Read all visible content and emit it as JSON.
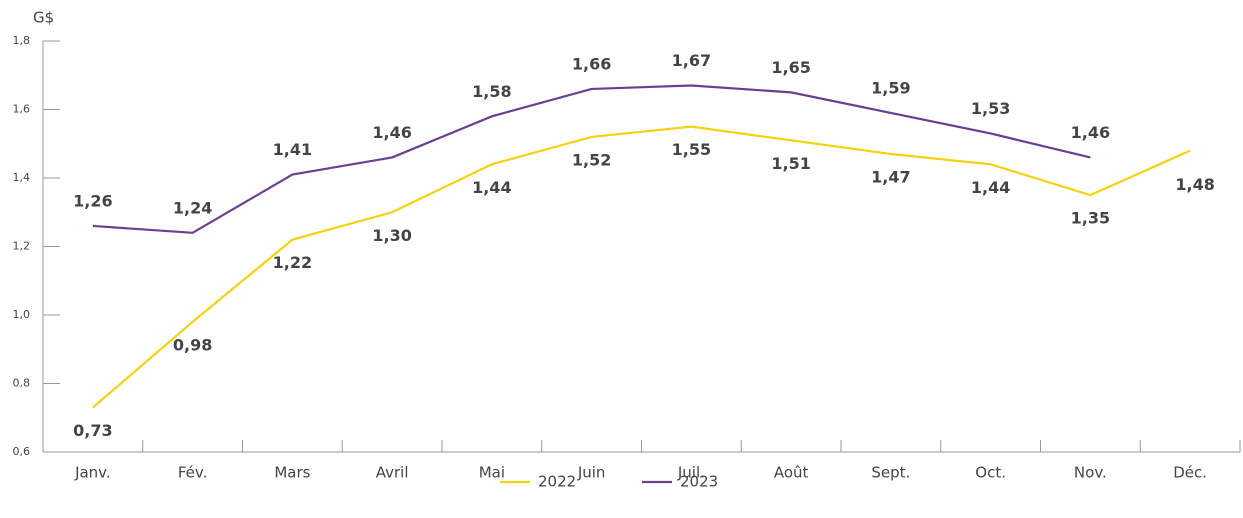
{
  "chart_data": {
    "type": "line",
    "y_axis_label": "G$",
    "categories": [
      "Janv.",
      "Fév.",
      "Mars",
      "Avril",
      "Mai",
      "Juin",
      "Juil.",
      "Août",
      "Sept.",
      "Oct.",
      "Nov.",
      "Déc."
    ],
    "series": [
      {
        "name": "2022",
        "color": "#f5d20f",
        "values": [
          0.73,
          0.98,
          1.22,
          1.3,
          1.44,
          1.52,
          1.55,
          1.51,
          1.47,
          1.44,
          1.35,
          1.48
        ],
        "value_labels": [
          "0,73",
          "0,98",
          "1,22",
          "1,30",
          "1,44",
          "1,52",
          "1,55",
          "1,51",
          "1,47",
          "1,44",
          "1,35",
          "1,48"
        ]
      },
      {
        "name": "2023",
        "color": "#6b3f8f",
        "values": [
          1.26,
          1.24,
          1.41,
          1.46,
          1.58,
          1.66,
          1.67,
          1.65,
          1.59,
          1.53,
          1.46,
          null
        ],
        "value_labels": [
          "1,26",
          "1,24",
          "1,41",
          "1,46",
          "1,58",
          "1,66",
          "1,67",
          "1,65",
          "1,59",
          "1,53",
          "1,46",
          null
        ]
      }
    ],
    "ylim": [
      0.6,
      1.8
    ],
    "yticks": [
      {
        "value": 0.6,
        "label": "0,6"
      },
      {
        "value": 0.8,
        "label": "0,8"
      },
      {
        "value": 1.0,
        "label": "1,0"
      },
      {
        "value": 1.2,
        "label": "1,2"
      },
      {
        "value": 1.4,
        "label": "1,4"
      },
      {
        "value": 1.6,
        "label": "1,6"
      },
      {
        "value": 1.8,
        "label": "1,8"
      }
    ],
    "legend": "bottom"
  }
}
